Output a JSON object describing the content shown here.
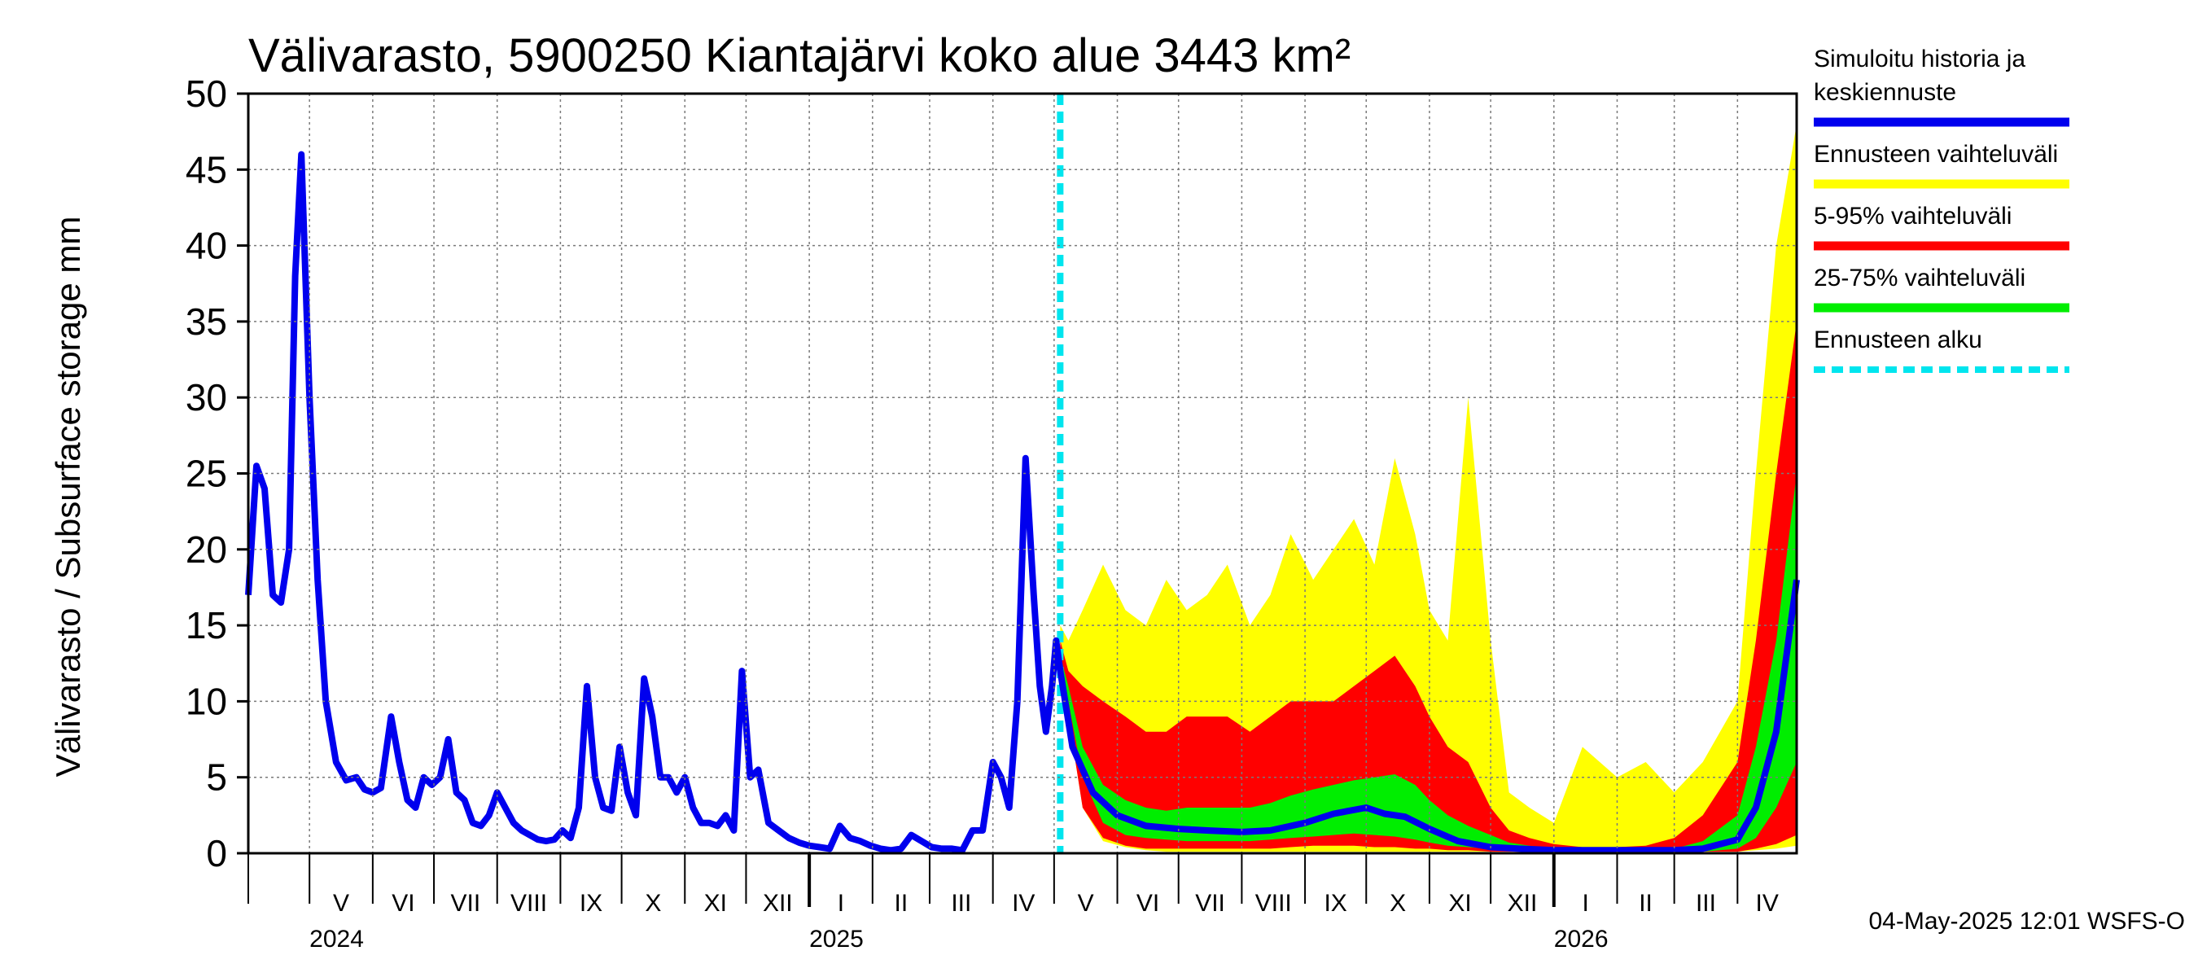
{
  "chart_data": {
    "type": "area",
    "title": "Välivarasto, 5900250 Kiantajärvi koko alue 3443 km²",
    "ylabel": "Välivarasto / Subsurface storage  mm",
    "ylim": [
      0,
      50
    ],
    "yticks": [
      "0",
      "5",
      "10",
      "15",
      "20",
      "25",
      "30",
      "35",
      "40",
      "45",
      "50"
    ],
    "x_range": [
      "2024-04-01",
      "2026-04-30"
    ],
    "forecast_start": "2025-05-04",
    "grid": true,
    "legend_position": "right",
    "month_labels": [
      {
        "label": "V",
        "date": "2024-05-01"
      },
      {
        "label": "VI",
        "date": "2024-06-01"
      },
      {
        "label": "VII",
        "date": "2024-07-01"
      },
      {
        "label": "VIII",
        "date": "2024-08-01"
      },
      {
        "label": "IX",
        "date": "2024-09-01"
      },
      {
        "label": "X",
        "date": "2024-10-01"
      },
      {
        "label": "XI",
        "date": "2024-11-01"
      },
      {
        "label": "XII",
        "date": "2024-12-01"
      },
      {
        "label": "I",
        "date": "2025-01-01"
      },
      {
        "label": "II",
        "date": "2025-02-01"
      },
      {
        "label": "III",
        "date": "2025-03-01"
      },
      {
        "label": "IV",
        "date": "2025-04-01"
      },
      {
        "label": "V",
        "date": "2025-05-01"
      },
      {
        "label": "VI",
        "date": "2025-06-01"
      },
      {
        "label": "VII",
        "date": "2025-07-01"
      },
      {
        "label": "VIII",
        "date": "2025-08-01"
      },
      {
        "label": "IX",
        "date": "2025-09-01"
      },
      {
        "label": "X",
        "date": "2025-10-01"
      },
      {
        "label": "XI",
        "date": "2025-11-01"
      },
      {
        "label": "XII",
        "date": "2025-12-01"
      },
      {
        "label": "I",
        "date": "2026-01-01"
      },
      {
        "label": "II",
        "date": "2026-02-01"
      },
      {
        "label": "III",
        "date": "2026-03-01"
      },
      {
        "label": "IV",
        "date": "2026-04-01"
      }
    ],
    "year_labels": [
      {
        "label": "2024",
        "date": "2024-05-01"
      },
      {
        "label": "2025",
        "date": "2025-01-01"
      },
      {
        "label": "2026",
        "date": "2026-01-01"
      }
    ],
    "series": [
      {
        "name": "Ennusteen vaihteluväli",
        "color": "#ffff00",
        "kind": "band",
        "x": [
          "2025-05-04",
          "2025-05-08",
          "2025-05-15",
          "2025-05-25",
          "2025-06-05",
          "2025-06-15",
          "2025-06-25",
          "2025-07-05",
          "2025-07-15",
          "2025-07-25",
          "2025-08-05",
          "2025-08-15",
          "2025-08-25",
          "2025-09-05",
          "2025-09-15",
          "2025-09-25",
          "2025-10-05",
          "2025-10-15",
          "2025-10-25",
          "2025-11-01",
          "2025-11-10",
          "2025-11-20",
          "2025-12-01",
          "2025-12-10",
          "2025-12-20",
          "2026-01-01",
          "2026-01-15",
          "2026-02-01",
          "2026-02-15",
          "2026-03-01",
          "2026-03-15",
          "2026-04-01",
          "2026-04-10",
          "2026-04-20",
          "2026-04-30"
        ],
        "lower": [
          11,
          9,
          3,
          0.8,
          0.4,
          0.2,
          0.1,
          0.1,
          0.1,
          0.1,
          0.1,
          0.1,
          0.1,
          0.1,
          0.1,
          0.1,
          0.1,
          0.1,
          0.1,
          0.1,
          0.1,
          0.1,
          0.1,
          0.1,
          0.1,
          0.1,
          0.1,
          0.1,
          0.1,
          0.1,
          0.1,
          0.1,
          0.2,
          0.3,
          0.5
        ],
        "upper": [
          15,
          14,
          16,
          19,
          16,
          15,
          18,
          16,
          17,
          19,
          15,
          17,
          21,
          18,
          20,
          22,
          19,
          26,
          21,
          16,
          14,
          30,
          14,
          4,
          3,
          2,
          7,
          5,
          6,
          4,
          6,
          10,
          25,
          40,
          48
        ]
      },
      {
        "name": "5-95% vaihteluväli",
        "color": "#ff0000",
        "kind": "band",
        "x": [
          "2025-05-04",
          "2025-05-08",
          "2025-05-15",
          "2025-05-25",
          "2025-06-05",
          "2025-06-15",
          "2025-06-25",
          "2025-07-05",
          "2025-07-15",
          "2025-07-25",
          "2025-08-05",
          "2025-08-15",
          "2025-08-25",
          "2025-09-05",
          "2025-09-15",
          "2025-09-25",
          "2025-10-05",
          "2025-10-15",
          "2025-10-25",
          "2025-11-01",
          "2025-11-10",
          "2025-11-20",
          "2025-12-01",
          "2025-12-10",
          "2025-12-20",
          "2026-01-01",
          "2026-01-15",
          "2026-02-01",
          "2026-02-15",
          "2026-03-01",
          "2026-03-15",
          "2026-04-01",
          "2026-04-10",
          "2026-04-20",
          "2026-04-30"
        ],
        "lower": [
          11,
          9,
          3,
          1,
          0.5,
          0.3,
          0.3,
          0.3,
          0.3,
          0.3,
          0.3,
          0.3,
          0.4,
          0.5,
          0.5,
          0.5,
          0.4,
          0.4,
          0.3,
          0.3,
          0.2,
          0.2,
          0.1,
          0.1,
          0.1,
          0.1,
          0.1,
          0.1,
          0.1,
          0.1,
          0.1,
          0.1,
          0.3,
          0.6,
          1.2
        ],
        "upper": [
          14,
          12,
          11,
          10,
          9,
          8,
          8,
          9,
          9,
          9,
          8,
          9,
          10,
          10,
          10,
          11,
          12,
          13,
          11,
          9,
          7,
          6,
          3,
          1.5,
          1,
          0.6,
          0.4,
          0.4,
          0.5,
          1,
          2.5,
          6,
          14,
          25,
          35
        ]
      },
      {
        "name": "25-75% vaihteluväli",
        "color": "#00ee00",
        "kind": "band",
        "x": [
          "2025-05-04",
          "2025-05-08",
          "2025-05-15",
          "2025-05-25",
          "2025-06-05",
          "2025-06-15",
          "2025-06-25",
          "2025-07-05",
          "2025-07-15",
          "2025-07-25",
          "2025-08-05",
          "2025-08-15",
          "2025-08-25",
          "2025-09-05",
          "2025-09-15",
          "2025-09-25",
          "2025-10-05",
          "2025-10-15",
          "2025-10-25",
          "2025-11-01",
          "2025-11-10",
          "2025-11-20",
          "2025-12-01",
          "2025-12-10",
          "2025-12-20",
          "2026-01-01",
          "2026-01-15",
          "2026-02-01",
          "2026-02-15",
          "2026-03-01",
          "2026-03-15",
          "2026-04-01",
          "2026-04-10",
          "2026-04-20",
          "2026-04-30"
        ],
        "lower": [
          12,
          10,
          5,
          2,
          1.2,
          1,
          0.9,
          0.8,
          0.8,
          0.8,
          0.8,
          0.9,
          1,
          1.1,
          1.2,
          1.3,
          1.2,
          1.1,
          0.9,
          0.7,
          0.5,
          0.4,
          0.3,
          0.2,
          0.2,
          0.1,
          0.1,
          0.1,
          0.1,
          0.1,
          0.1,
          0.3,
          1,
          3,
          6
        ],
        "upper": [
          13,
          11,
          7,
          4.5,
          3.5,
          3,
          2.8,
          3,
          3,
          3,
          3,
          3.3,
          3.8,
          4.2,
          4.5,
          4.8,
          5,
          5.2,
          4.5,
          3.5,
          2.5,
          1.8,
          1.2,
          0.7,
          0.5,
          0.3,
          0.2,
          0.2,
          0.2,
          0.3,
          0.8,
          2.5,
          7,
          14,
          25
        ]
      },
      {
        "name": "Simuloitu historia ja keskiennuste",
        "color": "#0000ee",
        "kind": "line",
        "x": [
          "2024-04-01",
          "2024-04-05",
          "2024-04-09",
          "2024-04-13",
          "2024-04-17",
          "2024-04-21",
          "2024-04-24",
          "2024-04-27",
          "2024-05-01",
          "2024-05-05",
          "2024-05-09",
          "2024-05-14",
          "2024-05-19",
          "2024-05-24",
          "2024-05-28",
          "2024-06-01",
          "2024-06-05",
          "2024-06-10",
          "2024-06-14",
          "2024-06-18",
          "2024-06-22",
          "2024-06-26",
          "2024-06-30",
          "2024-07-04",
          "2024-07-08",
          "2024-07-12",
          "2024-07-16",
          "2024-07-20",
          "2024-07-24",
          "2024-07-28",
          "2024-08-01",
          "2024-08-05",
          "2024-08-09",
          "2024-08-13",
          "2024-08-17",
          "2024-08-21",
          "2024-08-25",
          "2024-08-29",
          "2024-09-02",
          "2024-09-06",
          "2024-09-10",
          "2024-09-14",
          "2024-09-18",
          "2024-09-22",
          "2024-09-26",
          "2024-09-30",
          "2024-10-04",
          "2024-10-08",
          "2024-10-12",
          "2024-10-16",
          "2024-10-20",
          "2024-10-24",
          "2024-10-28",
          "2024-11-01",
          "2024-11-05",
          "2024-11-09",
          "2024-11-13",
          "2024-11-17",
          "2024-11-21",
          "2024-11-25",
          "2024-11-29",
          "2024-12-03",
          "2024-12-07",
          "2024-12-12",
          "2024-12-17",
          "2024-12-22",
          "2024-12-27",
          "2025-01-01",
          "2025-01-06",
          "2025-01-11",
          "2025-01-16",
          "2025-01-21",
          "2025-01-26",
          "2025-01-31",
          "2025-02-05",
          "2025-02-10",
          "2025-02-15",
          "2025-02-20",
          "2025-02-25",
          "2025-03-02",
          "2025-03-07",
          "2025-03-12",
          "2025-03-17",
          "2025-03-22",
          "2025-03-27",
          "2025-04-01",
          "2025-04-05",
          "2025-04-09",
          "2025-04-13",
          "2025-04-17",
          "2025-04-21",
          "2025-04-24",
          "2025-04-27",
          "2025-04-30",
          "2025-05-02",
          "2025-05-04",
          "2025-05-10",
          "2025-05-20",
          "2025-06-01",
          "2025-06-15",
          "2025-07-01",
          "2025-07-15",
          "2025-08-01",
          "2025-08-15",
          "2025-09-01",
          "2025-09-15",
          "2025-10-01",
          "2025-10-10",
          "2025-10-20",
          "2025-11-01",
          "2025-11-15",
          "2025-12-01",
          "2025-12-15",
          "2026-01-01",
          "2026-01-15",
          "2026-02-01",
          "2026-02-15",
          "2026-03-01",
          "2026-03-15",
          "2026-04-01",
          "2026-04-10",
          "2026-04-20",
          "2026-04-30"
        ],
        "values": [
          17,
          25.5,
          24,
          17,
          16.5,
          20,
          38,
          46,
          30,
          18,
          10,
          6,
          4.8,
          5,
          4.2,
          4,
          4.3,
          9,
          6,
          3.5,
          3,
          5,
          4.5,
          5,
          7.5,
          4,
          3.5,
          2,
          1.8,
          2.5,
          4,
          3,
          2,
          1.5,
          1.2,
          0.9,
          0.8,
          0.9,
          1.5,
          1,
          3,
          11,
          5,
          3,
          2.8,
          7,
          4,
          2.5,
          11.5,
          9,
          5,
          5,
          4,
          5,
          3,
          2,
          2,
          1.8,
          2.5,
          1.5,
          12,
          5,
          5.5,
          2,
          1.5,
          1,
          0.7,
          0.5,
          0.4,
          0.3,
          1.8,
          1,
          0.8,
          0.5,
          0.3,
          0.2,
          0.3,
          1.2,
          0.8,
          0.4,
          0.3,
          0.3,
          0.2,
          1.5,
          1.5,
          6,
          5,
          3,
          10,
          26,
          17,
          11,
          8,
          11,
          14,
          12,
          7,
          4,
          2.5,
          1.8,
          1.6,
          1.5,
          1.4,
          1.5,
          2,
          2.6,
          3,
          2.6,
          2.4,
          1.6,
          0.8,
          0.4,
          0.3,
          0.2,
          0.2,
          0.2,
          0.2,
          0.2,
          0.3,
          0.9,
          3,
          8,
          18
        ]
      }
    ],
    "forecast_marker": {
      "name": "Ennusteen alku",
      "color": "#00e5ee"
    }
  },
  "legend": [
    {
      "label_lines": [
        "Simuloitu historia ja",
        "keskiennuste"
      ],
      "color": "#0000ee",
      "dashed": false
    },
    {
      "label_lines": [
        "Ennusteen vaihteluväli"
      ],
      "color": "#ffff00",
      "dashed": false
    },
    {
      "label_lines": [
        "5-95% vaihteluväli"
      ],
      "color": "#ff0000",
      "dashed": false
    },
    {
      "label_lines": [
        "25-75% vaihteluväli"
      ],
      "color": "#00ee00",
      "dashed": false
    },
    {
      "label_lines": [
        "Ennusteen alku"
      ],
      "color": "#00e5ee",
      "dashed": true
    }
  ],
  "footer": "04-May-2025 12:01 WSFS-O"
}
